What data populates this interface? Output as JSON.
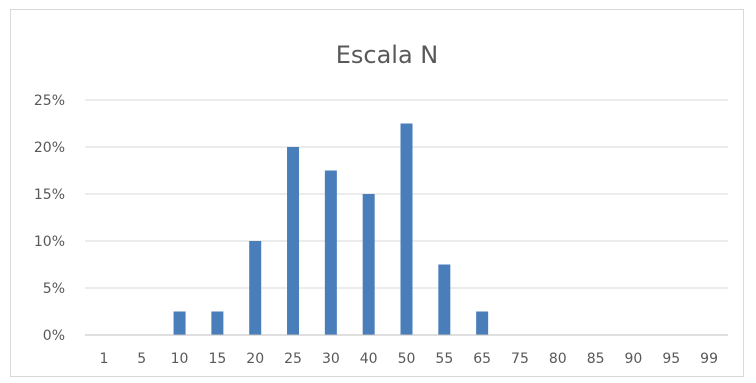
{
  "chart_data": {
    "type": "bar",
    "title": "Escala N",
    "xlabel": "",
    "ylabel": "",
    "categories": [
      "1",
      "5",
      "10",
      "15",
      "20",
      "25",
      "30",
      "40",
      "50",
      "55",
      "65",
      "75",
      "80",
      "85",
      "90",
      "95",
      "99"
    ],
    "values": [
      0,
      0,
      2.5,
      2.5,
      10,
      20,
      17.5,
      15,
      22.5,
      7.5,
      2.5,
      0,
      0,
      0,
      0,
      0,
      0
    ],
    "ylim": [
      0,
      25
    ],
    "yticks": [
      0,
      5,
      10,
      15,
      20,
      25
    ],
    "ytick_labels": [
      "0%",
      "5%",
      "10%",
      "15%",
      "20%",
      "25%"
    ],
    "grid": true,
    "legend": "none",
    "bar_color": "#4a7ebb",
    "grid_color": "#d9d9d9",
    "axis_color": "#bfbfbf",
    "text_color": "#595959"
  }
}
